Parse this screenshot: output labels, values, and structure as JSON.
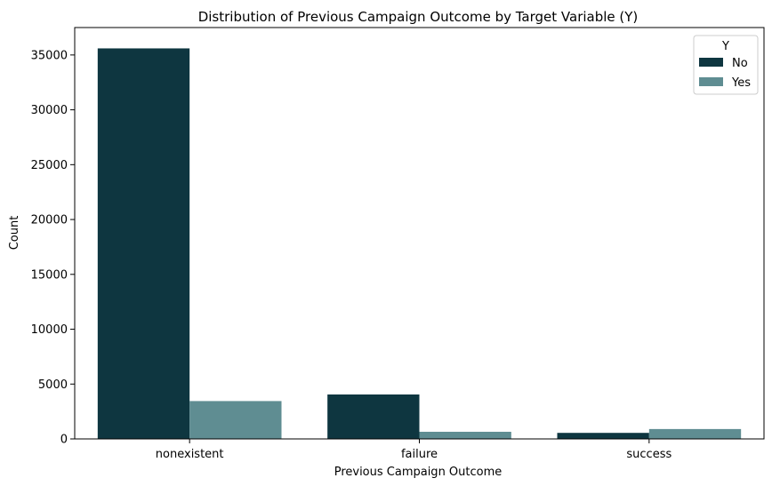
{
  "chart_data": {
    "type": "bar",
    "title": "Distribution of Previous Campaign Outcome by Target Variable (Y)",
    "xlabel": "Previous Campaign Outcome",
    "ylabel": "Count",
    "categories": [
      "nonexistent",
      "failure",
      "success"
    ],
    "series": [
      {
        "name": "No",
        "values": [
          35600,
          4050,
          550
        ]
      },
      {
        "name": "Yes",
        "values": [
          3450,
          650,
          900
        ]
      }
    ],
    "ylim": [
      0,
      37500
    ],
    "yticks": [
      0,
      5000,
      10000,
      15000,
      20000,
      25000,
      30000,
      35000
    ],
    "grid": false,
    "legend": {
      "title": "Y",
      "placement": "top-right"
    },
    "colors": {
      "No": "#0e3640",
      "Yes": "#5f8d92"
    }
  }
}
